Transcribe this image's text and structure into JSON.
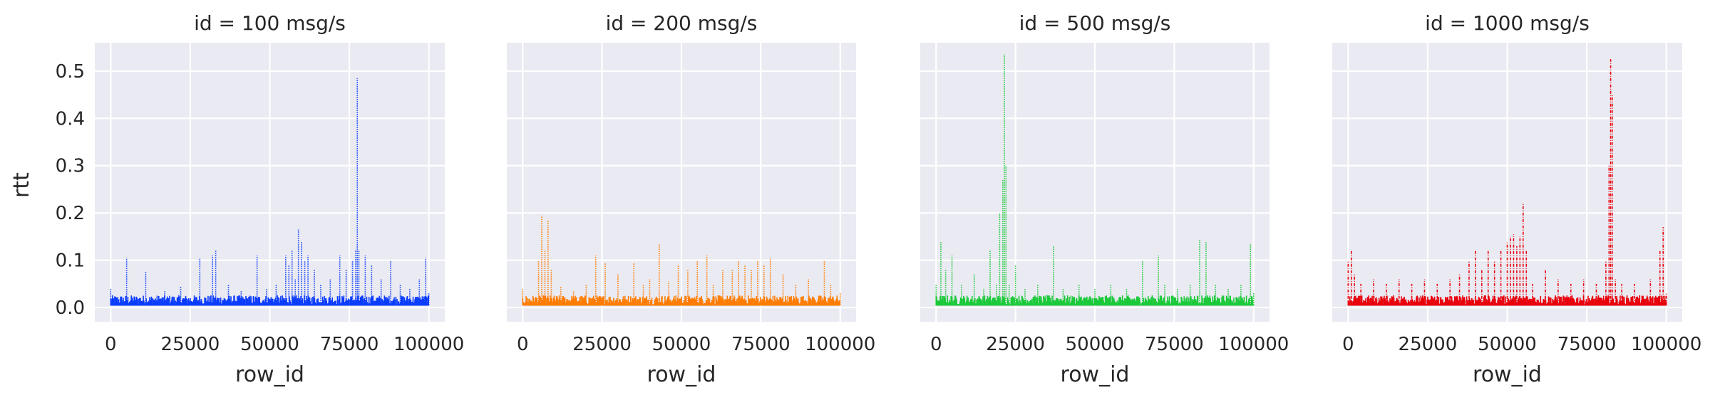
{
  "chart_data": [
    {
      "type": "line",
      "title": "id = 100 msg/s",
      "xlabel": "row_id",
      "ylabel": "rtt",
      "xlim": [
        -5000,
        105000
      ],
      "ylim": [
        -0.03,
        0.56
      ],
      "xticks": [
        0,
        25000,
        50000,
        75000,
        100000
      ],
      "yticks": [
        0.0,
        0.1,
        0.2,
        0.3,
        0.4,
        0.5
      ],
      "grid": true,
      "color": "#0a3cff",
      "linestyle": "dotted",
      "series": [
        {
          "x": [
            0,
            5000,
            11000,
            17000,
            22000,
            28000,
            32000,
            33000,
            37000,
            41000,
            46000,
            49000,
            52000,
            55000,
            56000,
            57000,
            58000,
            59000,
            60000,
            61000,
            62000,
            64000,
            66000,
            69000,
            72000,
            74000,
            76000,
            77000,
            77500,
            78000,
            80000,
            82000,
            85000,
            88000,
            91000,
            94000,
            97000,
            99000,
            100000
          ],
          "y": [
            0.04,
            0.105,
            0.075,
            0.035,
            0.045,
            0.105,
            0.11,
            0.12,
            0.05,
            0.035,
            0.11,
            0.04,
            0.05,
            0.11,
            0.09,
            0.12,
            0.06,
            0.165,
            0.14,
            0.1,
            0.11,
            0.08,
            0.05,
            0.06,
            0.11,
            0.08,
            0.1,
            0.12,
            0.485,
            0.12,
            0.11,
            0.09,
            0.06,
            0.1,
            0.05,
            0.04,
            0.06,
            0.105,
            0.03
          ]
        }
      ]
    },
    {
      "type": "line",
      "title": "id = 200 msg/s",
      "xlabel": "row_id",
      "ylabel": "",
      "xlim": [
        -5000,
        105000
      ],
      "ylim": [
        -0.03,
        0.56
      ],
      "xticks": [
        0,
        25000,
        50000,
        75000,
        100000
      ],
      "yticks": [
        0.0,
        0.1,
        0.2,
        0.3,
        0.4,
        0.5
      ],
      "grid": true,
      "color": "#ff7c00",
      "linestyle": "dotted",
      "series": [
        {
          "x": [
            0,
            5000,
            6000,
            7000,
            8000,
            9000,
            12000,
            16000,
            20000,
            23000,
            26000,
            30000,
            35000,
            38000,
            40000,
            43000,
            46000,
            49000,
            52000,
            55000,
            58000,
            60000,
            63000,
            66000,
            68000,
            70000,
            72000,
            74000,
            76000,
            78000,
            82000,
            86000,
            90000,
            95000,
            97000,
            100000
          ],
          "y": [
            0.04,
            0.1,
            0.195,
            0.12,
            0.185,
            0.08,
            0.045,
            0.035,
            0.05,
            0.11,
            0.095,
            0.07,
            0.095,
            0.05,
            0.06,
            0.135,
            0.055,
            0.09,
            0.08,
            0.1,
            0.11,
            0.05,
            0.08,
            0.08,
            0.1,
            0.09,
            0.08,
            0.1,
            0.09,
            0.105,
            0.07,
            0.05,
            0.06,
            0.1,
            0.05,
            0.03
          ]
        }
      ]
    },
    {
      "type": "line",
      "title": "id = 500 msg/s",
      "xlabel": "row_id",
      "ylabel": "",
      "xlim": [
        -5000,
        105000
      ],
      "ylim": [
        -0.03,
        0.56
      ],
      "xticks": [
        0,
        25000,
        50000,
        75000,
        100000
      ],
      "yticks": [
        0.0,
        0.1,
        0.2,
        0.3,
        0.4,
        0.5
      ],
      "grid": true,
      "color": "#1ac938",
      "linestyle": "dotted",
      "series": [
        {
          "x": [
            0,
            1500,
            3000,
            5000,
            8000,
            12000,
            15000,
            17000,
            19000,
            20000,
            21000,
            21500,
            22000,
            23000,
            25000,
            28000,
            32000,
            37000,
            40000,
            45000,
            50000,
            55000,
            60000,
            65000,
            70000,
            72000,
            76000,
            80000,
            83000,
            85000,
            88000,
            92000,
            96000,
            99000,
            100000
          ],
          "y": [
            0.05,
            0.14,
            0.08,
            0.11,
            0.05,
            0.07,
            0.04,
            0.12,
            0.05,
            0.2,
            0.27,
            0.535,
            0.3,
            0.05,
            0.09,
            0.04,
            0.05,
            0.13,
            0.04,
            0.05,
            0.04,
            0.05,
            0.04,
            0.1,
            0.11,
            0.05,
            0.04,
            0.05,
            0.145,
            0.14,
            0.05,
            0.04,
            0.05,
            0.135,
            0.03
          ]
        }
      ]
    },
    {
      "type": "line",
      "title": "id = 1000 msg/s",
      "xlabel": "row_id",
      "ylabel": "",
      "xlim": [
        -5000,
        105000
      ],
      "ylim": [
        -0.03,
        0.56
      ],
      "xticks": [
        0,
        25000,
        50000,
        75000,
        100000
      ],
      "yticks": [
        0.0,
        0.1,
        0.2,
        0.3,
        0.4,
        0.5
      ],
      "grid": true,
      "color": "#e8000b",
      "linestyle": "dashdot",
      "series": [
        {
          "x": [
            0,
            1000,
            2000,
            4000,
            8000,
            12000,
            16000,
            20000,
            24000,
            28000,
            32000,
            35000,
            38000,
            40000,
            42000,
            44000,
            46000,
            48000,
            50000,
            51000,
            52000,
            53000,
            54000,
            55000,
            56000,
            58000,
            62000,
            66000,
            70000,
            74000,
            78000,
            81000,
            82000,
            82500,
            83000,
            84000,
            86000,
            90000,
            95000,
            98000,
            99000,
            100000
          ],
          "y": [
            0.1,
            0.12,
            0.07,
            0.05,
            0.06,
            0.05,
            0.06,
            0.05,
            0.06,
            0.05,
            0.06,
            0.07,
            0.1,
            0.12,
            0.08,
            0.12,
            0.1,
            0.12,
            0.14,
            0.15,
            0.155,
            0.13,
            0.15,
            0.22,
            0.12,
            0.05,
            0.08,
            0.06,
            0.05,
            0.06,
            0.05,
            0.1,
            0.3,
            0.525,
            0.45,
            0.06,
            0.05,
            0.05,
            0.06,
            0.12,
            0.17,
            0.03
          ]
        }
      ]
    }
  ]
}
